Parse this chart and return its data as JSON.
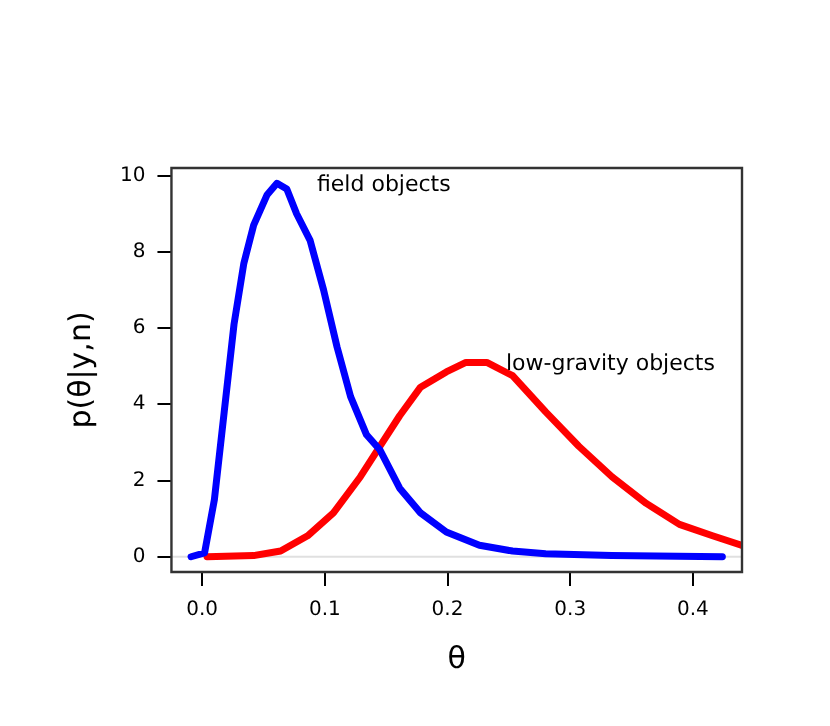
{
  "chart_data": {
    "type": "line",
    "xlabel": "θ",
    "ylabel": "p(θ|y,n)",
    "xlim": [
      -0.025,
      0.44
    ],
    "ylim": [
      -0.4,
      10.2
    ],
    "xticks": [
      {
        "value": 0,
        "label": "0.0"
      },
      0.1,
      0.2,
      0.3,
      0.4
    ],
    "yticks": [
      0,
      2,
      4,
      6,
      8,
      10
    ],
    "grid": false,
    "legend": false,
    "marker": "none",
    "line_style": "solid",
    "ref_lines": [
      {
        "axis": "y",
        "value": 0,
        "label": null,
        "color": "#e0e0e0"
      }
    ],
    "series": [
      {
        "name": "field objects",
        "color": "#0000ff",
        "x": [
          -0.009,
          0.002,
          0.01,
          0.018,
          0.026,
          0.034,
          0.042,
          0.053,
          0.061,
          0.069,
          0.077,
          0.088,
          0.099,
          0.11,
          0.121,
          0.134,
          0.145,
          0.161,
          0.178,
          0.199,
          0.226,
          0.253,
          0.28,
          0.334,
          0.424
        ],
        "values": [
          0,
          0.1,
          1.5,
          3.8,
          6.1,
          7.7,
          8.7,
          9.5,
          9.8,
          9.65,
          9,
          8.3,
          7,
          5.5,
          4.2,
          3.2,
          2.8,
          1.8,
          1.15,
          0.65,
          0.3,
          0.15,
          0.08,
          0.03,
          0
        ]
      },
      {
        "name": "low-gravity objects",
        "color": "#ff0000",
        "x": [
          0.004,
          0.042,
          0.064,
          0.086,
          0.107,
          0.129,
          0.145,
          0.161,
          0.178,
          0.199,
          0.215,
          0.232,
          0.253,
          0.28,
          0.307,
          0.334,
          0.362,
          0.389,
          0.416,
          0.44
        ],
        "values": [
          0,
          0.03,
          0.15,
          0.55,
          1.15,
          2.1,
          2.9,
          3.7,
          4.45,
          4.85,
          5.1,
          5.1,
          4.75,
          3.8,
          2.9,
          2.1,
          1.4,
          0.85,
          0.55,
          0.3
        ]
      }
    ]
  }
}
